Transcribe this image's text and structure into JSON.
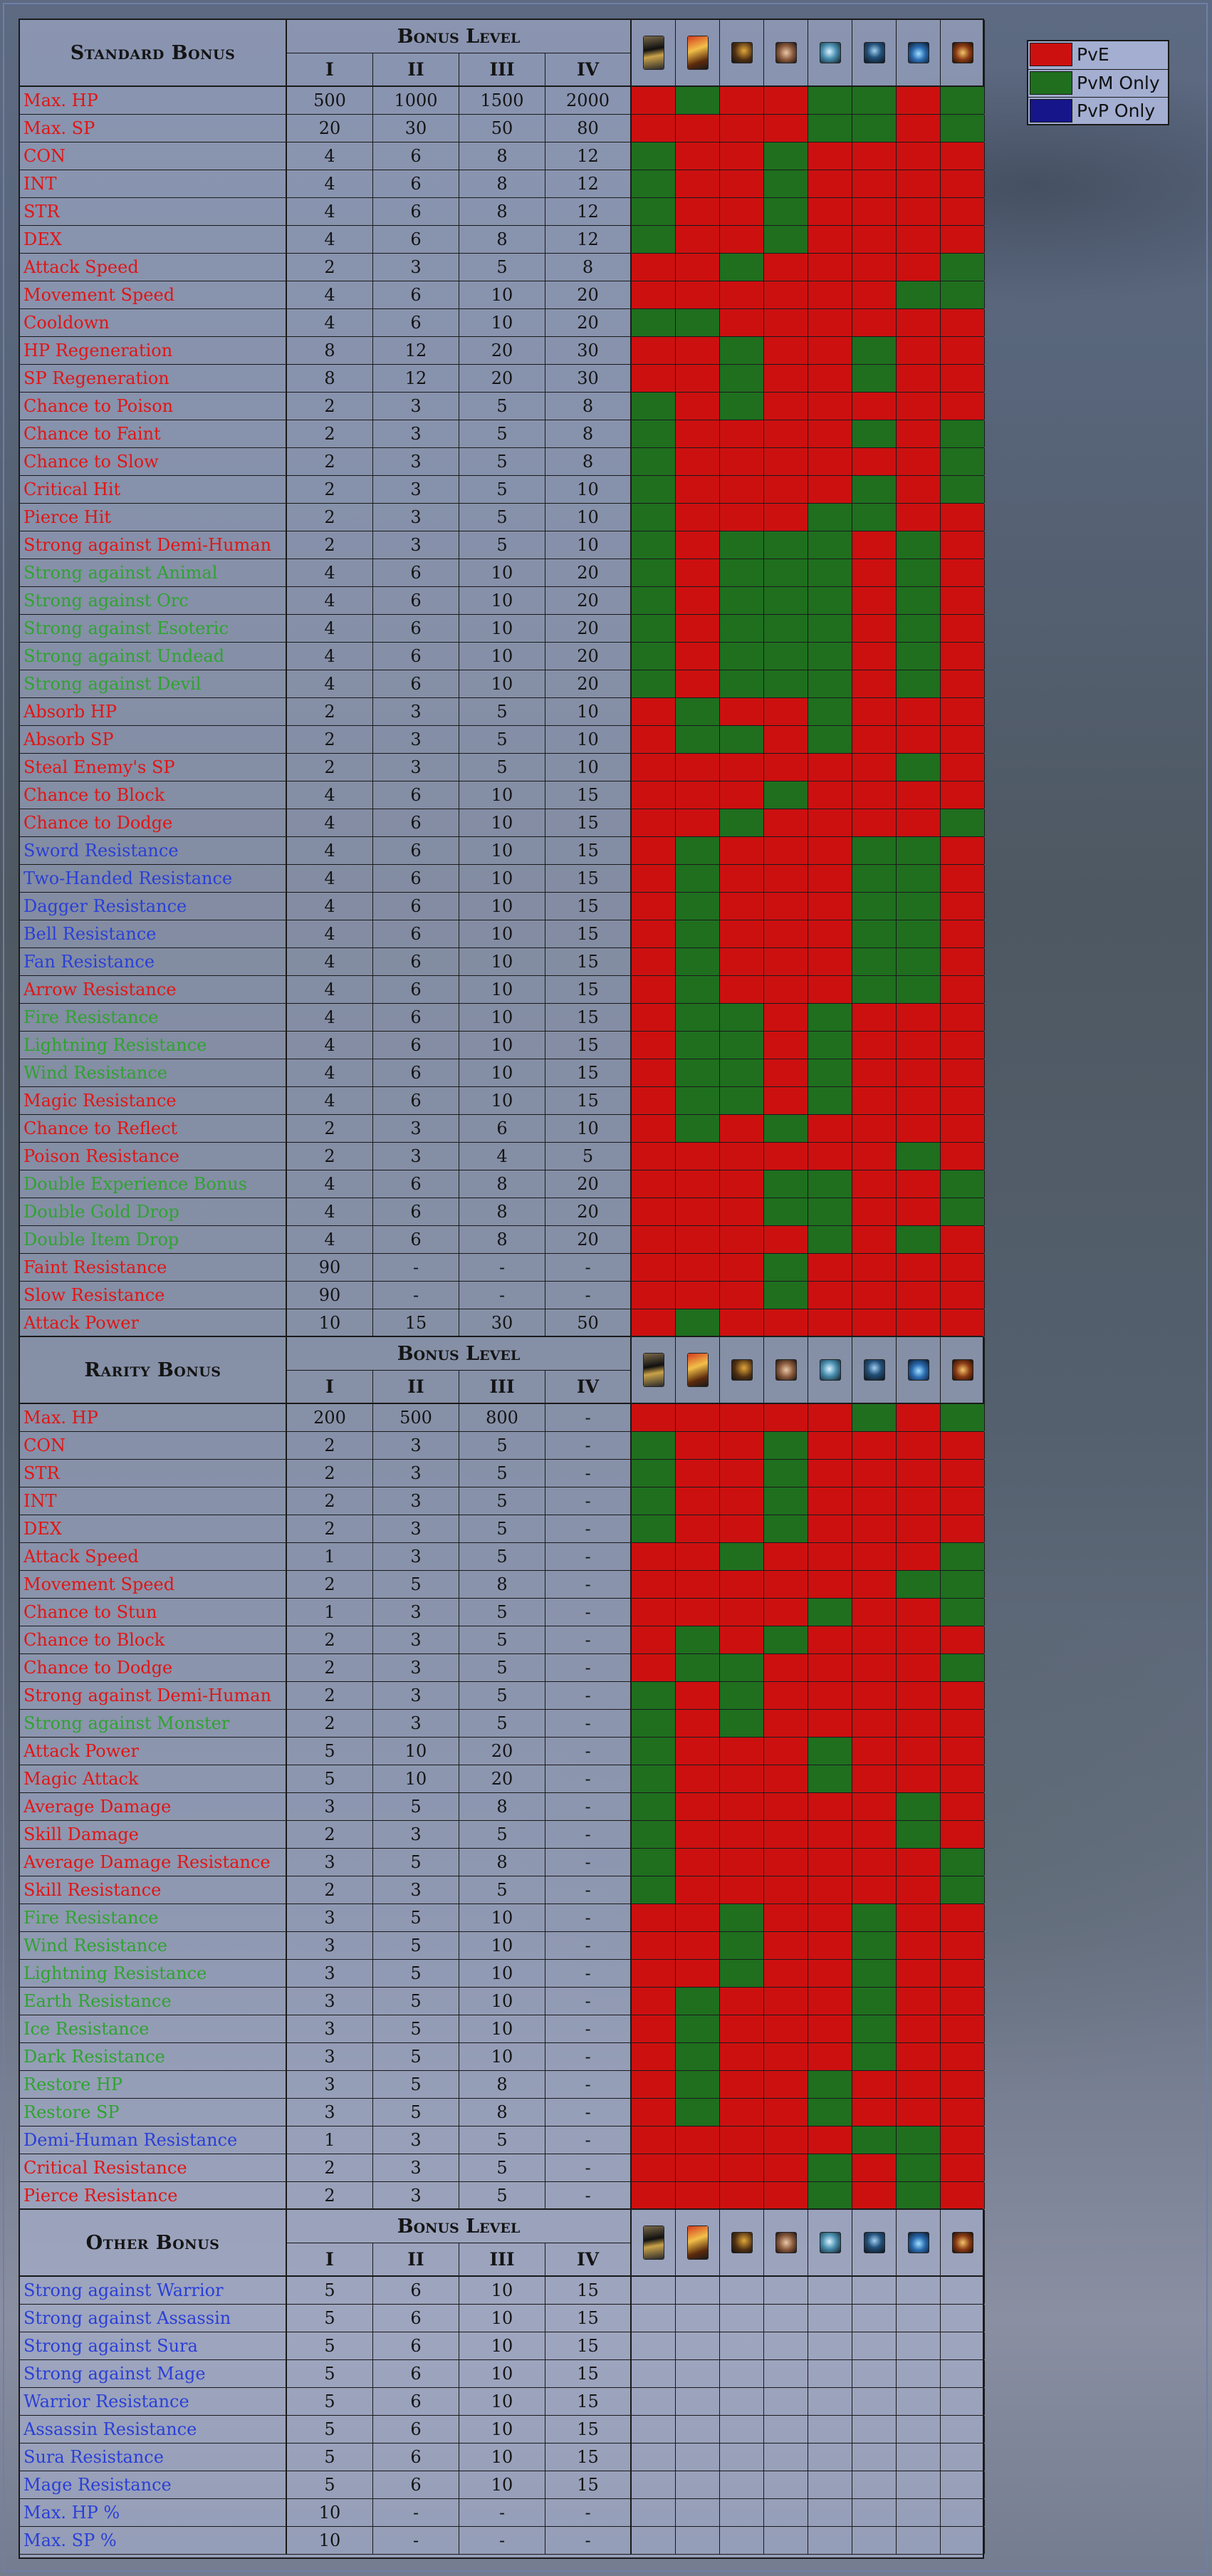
{
  "legend": [
    {
      "label": "PvE",
      "color": "#cc1010"
    },
    {
      "label": "PvM Only",
      "color": "#1f6f1f"
    },
    {
      "label": "PvP Only",
      "color": "#16168a"
    }
  ],
  "level_header": "Bonus Level",
  "levels": [
    "I",
    "II",
    "III",
    "IV"
  ],
  "class_icons": [
    "warrior-icon",
    "assassin-icon",
    "sura-icon",
    "shaman-icon",
    "mage-icon",
    "ninja-icon",
    "blue-mage-icon",
    "golden-mage-icon"
  ],
  "sections": [
    {
      "title": "Standard Bonus",
      "rows": [
        {
          "name": "Max. HP",
          "color": "red",
          "vals": [
            "500",
            "1000",
            "1500",
            "2000"
          ],
          "cells": "RGRRGGRG"
        },
        {
          "name": "Max. SP",
          "color": "red",
          "vals": [
            "20",
            "30",
            "50",
            "80"
          ],
          "cells": "RRRRGGRG"
        },
        {
          "name": "CON",
          "color": "red",
          "vals": [
            "4",
            "6",
            "8",
            "12"
          ],
          "cells": "GRRGRRRR"
        },
        {
          "name": "INT",
          "color": "red",
          "vals": [
            "4",
            "6",
            "8",
            "12"
          ],
          "cells": "GRRGRRRR"
        },
        {
          "name": "STR",
          "color": "red",
          "vals": [
            "4",
            "6",
            "8",
            "12"
          ],
          "cells": "GRRGRRRR"
        },
        {
          "name": "DEX",
          "color": "red",
          "vals": [
            "4",
            "6",
            "8",
            "12"
          ],
          "cells": "GRRGRRRR"
        },
        {
          "name": "Attack Speed",
          "color": "red",
          "vals": [
            "2",
            "3",
            "5",
            "8"
          ],
          "cells": "RRGRRRRG"
        },
        {
          "name": "Movement Speed",
          "color": "red",
          "vals": [
            "4",
            "6",
            "10",
            "20"
          ],
          "cells": "RRRRRRGG"
        },
        {
          "name": "Cooldown",
          "color": "red",
          "vals": [
            "4",
            "6",
            "10",
            "20"
          ],
          "cells": "GGRRRRRR"
        },
        {
          "name": "HP Regeneration",
          "color": "red",
          "vals": [
            "8",
            "12",
            "20",
            "30"
          ],
          "cells": "RRGRRGRR"
        },
        {
          "name": "SP Regeneration",
          "color": "red",
          "vals": [
            "8",
            "12",
            "20",
            "30"
          ],
          "cells": "RRGRRGRR"
        },
        {
          "name": "Chance to Poison",
          "color": "red",
          "vals": [
            "2",
            "3",
            "5",
            "8"
          ],
          "cells": "GRGRRRRR"
        },
        {
          "name": "Chance to Faint",
          "color": "red",
          "vals": [
            "2",
            "3",
            "5",
            "8"
          ],
          "cells": "GRRRRGRG"
        },
        {
          "name": "Chance to Slow",
          "color": "red",
          "vals": [
            "2",
            "3",
            "5",
            "8"
          ],
          "cells": "GRRRRRRG"
        },
        {
          "name": "Critical Hit",
          "color": "red",
          "vals": [
            "2",
            "3",
            "5",
            "10"
          ],
          "cells": "GRRRRGRG"
        },
        {
          "name": "Pierce Hit",
          "color": "red",
          "vals": [
            "2",
            "3",
            "5",
            "10"
          ],
          "cells": "GRRRGGRR"
        },
        {
          "name": "Strong against Demi-Human",
          "color": "red",
          "vals": [
            "2",
            "3",
            "5",
            "10"
          ],
          "cells": "GRGGGRGR"
        },
        {
          "name": "Strong against Animal",
          "color": "green",
          "vals": [
            "4",
            "6",
            "10",
            "20"
          ],
          "cells": "GRGGGRGR"
        },
        {
          "name": "Strong against Orc",
          "color": "green",
          "vals": [
            "4",
            "6",
            "10",
            "20"
          ],
          "cells": "GRGGGRGR"
        },
        {
          "name": "Strong against Esoteric",
          "color": "green",
          "vals": [
            "4",
            "6",
            "10",
            "20"
          ],
          "cells": "GRGGGRGR"
        },
        {
          "name": "Strong against Undead",
          "color": "green",
          "vals": [
            "4",
            "6",
            "10",
            "20"
          ],
          "cells": "GRGGGRGR"
        },
        {
          "name": "Strong against Devil",
          "color": "green",
          "vals": [
            "4",
            "6",
            "10",
            "20"
          ],
          "cells": "GRGGGRGR"
        },
        {
          "name": "Absorb HP",
          "color": "red",
          "vals": [
            "2",
            "3",
            "5",
            "10"
          ],
          "cells": "RGRRGRRR"
        },
        {
          "name": "Absorb SP",
          "color": "red",
          "vals": [
            "2",
            "3",
            "5",
            "10"
          ],
          "cells": "RGGRGRRR"
        },
        {
          "name": "Steal Enemy's SP",
          "color": "red",
          "vals": [
            "2",
            "3",
            "5",
            "10"
          ],
          "cells": "RRRRRRGR"
        },
        {
          "name": "Chance to Block",
          "color": "red",
          "vals": [
            "4",
            "6",
            "10",
            "15"
          ],
          "cells": "RRRGRRRR"
        },
        {
          "name": "Chance to Dodge",
          "color": "red",
          "vals": [
            "4",
            "6",
            "10",
            "15"
          ],
          "cells": "RRGRRRRG"
        },
        {
          "name": "Sword Resistance",
          "color": "blue",
          "vals": [
            "4",
            "6",
            "10",
            "15"
          ],
          "cells": "RGRRRGGR"
        },
        {
          "name": "Two-Handed Resistance",
          "color": "blue",
          "vals": [
            "4",
            "6",
            "10",
            "15"
          ],
          "cells": "RGRRRGGR"
        },
        {
          "name": "Dagger Resistance",
          "color": "blue",
          "vals": [
            "4",
            "6",
            "10",
            "15"
          ],
          "cells": "RGRRRGGR"
        },
        {
          "name": "Bell Resistance",
          "color": "blue",
          "vals": [
            "4",
            "6",
            "10",
            "15"
          ],
          "cells": "RGRRRGGR"
        },
        {
          "name": "Fan Resistance",
          "color": "blue",
          "vals": [
            "4",
            "6",
            "10",
            "15"
          ],
          "cells": "RGRRRGGR"
        },
        {
          "name": "Arrow Resistance",
          "color": "red",
          "vals": [
            "4",
            "6",
            "10",
            "15"
          ],
          "cells": "RGRRRGGR"
        },
        {
          "name": "Fire Resistance",
          "color": "green",
          "vals": [
            "4",
            "6",
            "10",
            "15"
          ],
          "cells": "RGGRGRRR"
        },
        {
          "name": "Lightning Resistance",
          "color": "green",
          "vals": [
            "4",
            "6",
            "10",
            "15"
          ],
          "cells": "RGGRGRRR"
        },
        {
          "name": "Wind Resistance",
          "color": "green",
          "vals": [
            "4",
            "6",
            "10",
            "15"
          ],
          "cells": "RGGRGRRR"
        },
        {
          "name": "Magic Resistance",
          "color": "red",
          "vals": [
            "4",
            "6",
            "10",
            "15"
          ],
          "cells": "RGGRGRRR"
        },
        {
          "name": "Chance to Reflect",
          "color": "red",
          "vals": [
            "2",
            "3",
            "6",
            "10"
          ],
          "cells": "RGRGRRRR"
        },
        {
          "name": "Poison Resistance",
          "color": "red",
          "vals": [
            "2",
            "3",
            "4",
            "5"
          ],
          "cells": "RRRRRRGR"
        },
        {
          "name": "Double Experience Bonus",
          "color": "green",
          "vals": [
            "4",
            "6",
            "8",
            "20"
          ],
          "cells": "RRRGGRRG"
        },
        {
          "name": "Double Gold Drop",
          "color": "green",
          "vals": [
            "4",
            "6",
            "8",
            "20"
          ],
          "cells": "RRRGGRRG"
        },
        {
          "name": "Double Item Drop",
          "color": "green",
          "vals": [
            "4",
            "6",
            "8",
            "20"
          ],
          "cells": "RRRRGRGR"
        },
        {
          "name": "Faint Resistance",
          "color": "red",
          "vals": [
            "90",
            "-",
            "-",
            "-"
          ],
          "cells": "RRRGRRRR"
        },
        {
          "name": "Slow Resistance",
          "color": "red",
          "vals": [
            "90",
            "-",
            "-",
            "-"
          ],
          "cells": "RRRGRRRR"
        },
        {
          "name": "Attack Power",
          "color": "red",
          "vals": [
            "10",
            "15",
            "30",
            "50"
          ],
          "cells": "RGRRRRRR"
        }
      ]
    },
    {
      "title": "Rarity Bonus",
      "rows": [
        {
          "name": "Max. HP",
          "color": "red",
          "vals": [
            "200",
            "500",
            "800",
            "-"
          ],
          "cells": "RRRRRGRG"
        },
        {
          "name": "CON",
          "color": "red",
          "vals": [
            "2",
            "3",
            "5",
            "-"
          ],
          "cells": "GRRGRRRR"
        },
        {
          "name": "STR",
          "color": "red",
          "vals": [
            "2",
            "3",
            "5",
            "-"
          ],
          "cells": "GRRGRRRR"
        },
        {
          "name": "INT",
          "color": "red",
          "vals": [
            "2",
            "3",
            "5",
            "-"
          ],
          "cells": "GRRGRRRR"
        },
        {
          "name": "DEX",
          "color": "red",
          "vals": [
            "2",
            "3",
            "5",
            "-"
          ],
          "cells": "GRRGRRRR"
        },
        {
          "name": "Attack Speed",
          "color": "red",
          "vals": [
            "1",
            "3",
            "5",
            "-"
          ],
          "cells": "RRGRRRRG"
        },
        {
          "name": "Movement Speed",
          "color": "red",
          "vals": [
            "2",
            "5",
            "8",
            "-"
          ],
          "cells": "RRRRRRGG"
        },
        {
          "name": "Chance to Stun",
          "color": "red",
          "vals": [
            "1",
            "3",
            "5",
            "-"
          ],
          "cells": "RRRRGRRG"
        },
        {
          "name": "Chance to Block",
          "color": "red",
          "vals": [
            "2",
            "3",
            "5",
            "-"
          ],
          "cells": "RGRGRRRR"
        },
        {
          "name": "Chance to Dodge",
          "color": "red",
          "vals": [
            "2",
            "3",
            "5",
            "-"
          ],
          "cells": "RGGRRRRG"
        },
        {
          "name": "Strong against Demi-Human",
          "color": "red",
          "vals": [
            "2",
            "3",
            "5",
            "-"
          ],
          "cells": "GRGRRRRR"
        },
        {
          "name": "Strong against Monster",
          "color": "green",
          "vals": [
            "2",
            "3",
            "5",
            "-"
          ],
          "cells": "GRGRRRRR"
        },
        {
          "name": "Attack Power",
          "color": "red",
          "vals": [
            "5",
            "10",
            "20",
            "-"
          ],
          "cells": "GRRRGRRR"
        },
        {
          "name": "Magic Attack",
          "color": "red",
          "vals": [
            "5",
            "10",
            "20",
            "-"
          ],
          "cells": "GRRRGRRR"
        },
        {
          "name": "Average Damage",
          "color": "red",
          "vals": [
            "3",
            "5",
            "8",
            "-"
          ],
          "cells": "GRRRRRGR"
        },
        {
          "name": "Skill Damage",
          "color": "red",
          "vals": [
            "2",
            "3",
            "5",
            "-"
          ],
          "cells": "GRRRRRGR"
        },
        {
          "name": "Average Damage Resistance",
          "color": "red",
          "vals": [
            "3",
            "5",
            "8",
            "-"
          ],
          "cells": "GRRRRRRG"
        },
        {
          "name": "Skill Resistance",
          "color": "red",
          "vals": [
            "2",
            "3",
            "5",
            "-"
          ],
          "cells": "GRRRRRRG"
        },
        {
          "name": "Fire Resistance",
          "color": "green",
          "vals": [
            "3",
            "5",
            "10",
            "-"
          ],
          "cells": "RRGRRGRR"
        },
        {
          "name": "Wind Resistance",
          "color": "green",
          "vals": [
            "3",
            "5",
            "10",
            "-"
          ],
          "cells": "RRGRRGRR"
        },
        {
          "name": "Lightning Resistance",
          "color": "green",
          "vals": [
            "3",
            "5",
            "10",
            "-"
          ],
          "cells": "RRGRRGRR"
        },
        {
          "name": "Earth Resistance",
          "color": "green",
          "vals": [
            "3",
            "5",
            "10",
            "-"
          ],
          "cells": "RGRRRGRR"
        },
        {
          "name": "Ice Resistance",
          "color": "green",
          "vals": [
            "3",
            "5",
            "10",
            "-"
          ],
          "cells": "RGRRRGRR"
        },
        {
          "name": "Dark Resistance",
          "color": "green",
          "vals": [
            "3",
            "5",
            "10",
            "-"
          ],
          "cells": "RGRRRGRR"
        },
        {
          "name": "Restore HP",
          "color": "green",
          "vals": [
            "3",
            "5",
            "8",
            "-"
          ],
          "cells": "RGRRGRRR"
        },
        {
          "name": "Restore SP",
          "color": "green",
          "vals": [
            "3",
            "5",
            "8",
            "-"
          ],
          "cells": "RGRRGRRR"
        },
        {
          "name": "Demi-Human Resistance",
          "color": "blue",
          "vals": [
            "1",
            "3",
            "5",
            "-"
          ],
          "cells": "RRRRRGGR"
        },
        {
          "name": "Critical Resistance",
          "color": "red",
          "vals": [
            "2",
            "3",
            "5",
            "-"
          ],
          "cells": "RRRRGRGR"
        },
        {
          "name": "Pierce Resistance",
          "color": "red",
          "vals": [
            "2",
            "3",
            "5",
            "-"
          ],
          "cells": "RRRRGRGR"
        }
      ]
    },
    {
      "title": "Other Bonus",
      "rows": [
        {
          "name": "Strong against Warrior",
          "color": "blue",
          "vals": [
            "5",
            "6",
            "10",
            "15"
          ],
          "cells": "EEEEEEEE"
        },
        {
          "name": "Strong against Assassin",
          "color": "blue",
          "vals": [
            "5",
            "6",
            "10",
            "15"
          ],
          "cells": "EEEEEEEE"
        },
        {
          "name": "Strong against Sura",
          "color": "blue",
          "vals": [
            "5",
            "6",
            "10",
            "15"
          ],
          "cells": "EEEEEEEE"
        },
        {
          "name": "Strong against Mage",
          "color": "blue",
          "vals": [
            "5",
            "6",
            "10",
            "15"
          ],
          "cells": "EEEEEEEE"
        },
        {
          "name": "Warrior Resistance",
          "color": "blue",
          "vals": [
            "5",
            "6",
            "10",
            "15"
          ],
          "cells": "EEEEEEEE"
        },
        {
          "name": "Assassin Resistance",
          "color": "blue",
          "vals": [
            "5",
            "6",
            "10",
            "15"
          ],
          "cells": "EEEEEEEE"
        },
        {
          "name": "Sura Resistance",
          "color": "blue",
          "vals": [
            "5",
            "6",
            "10",
            "15"
          ],
          "cells": "EEEEEEEE"
        },
        {
          "name": "Mage Resistance",
          "color": "blue",
          "vals": [
            "5",
            "6",
            "10",
            "15"
          ],
          "cells": "EEEEEEEE"
        },
        {
          "name": "Max. HP %",
          "color": "blue",
          "vals": [
            "10",
            "-",
            "-",
            "-"
          ],
          "cells": "EEEEEEEE"
        },
        {
          "name": "Max. SP %",
          "color": "blue",
          "vals": [
            "10",
            "-",
            "-",
            "-"
          ],
          "cells": "EEEEEEEE"
        }
      ]
    }
  ]
}
